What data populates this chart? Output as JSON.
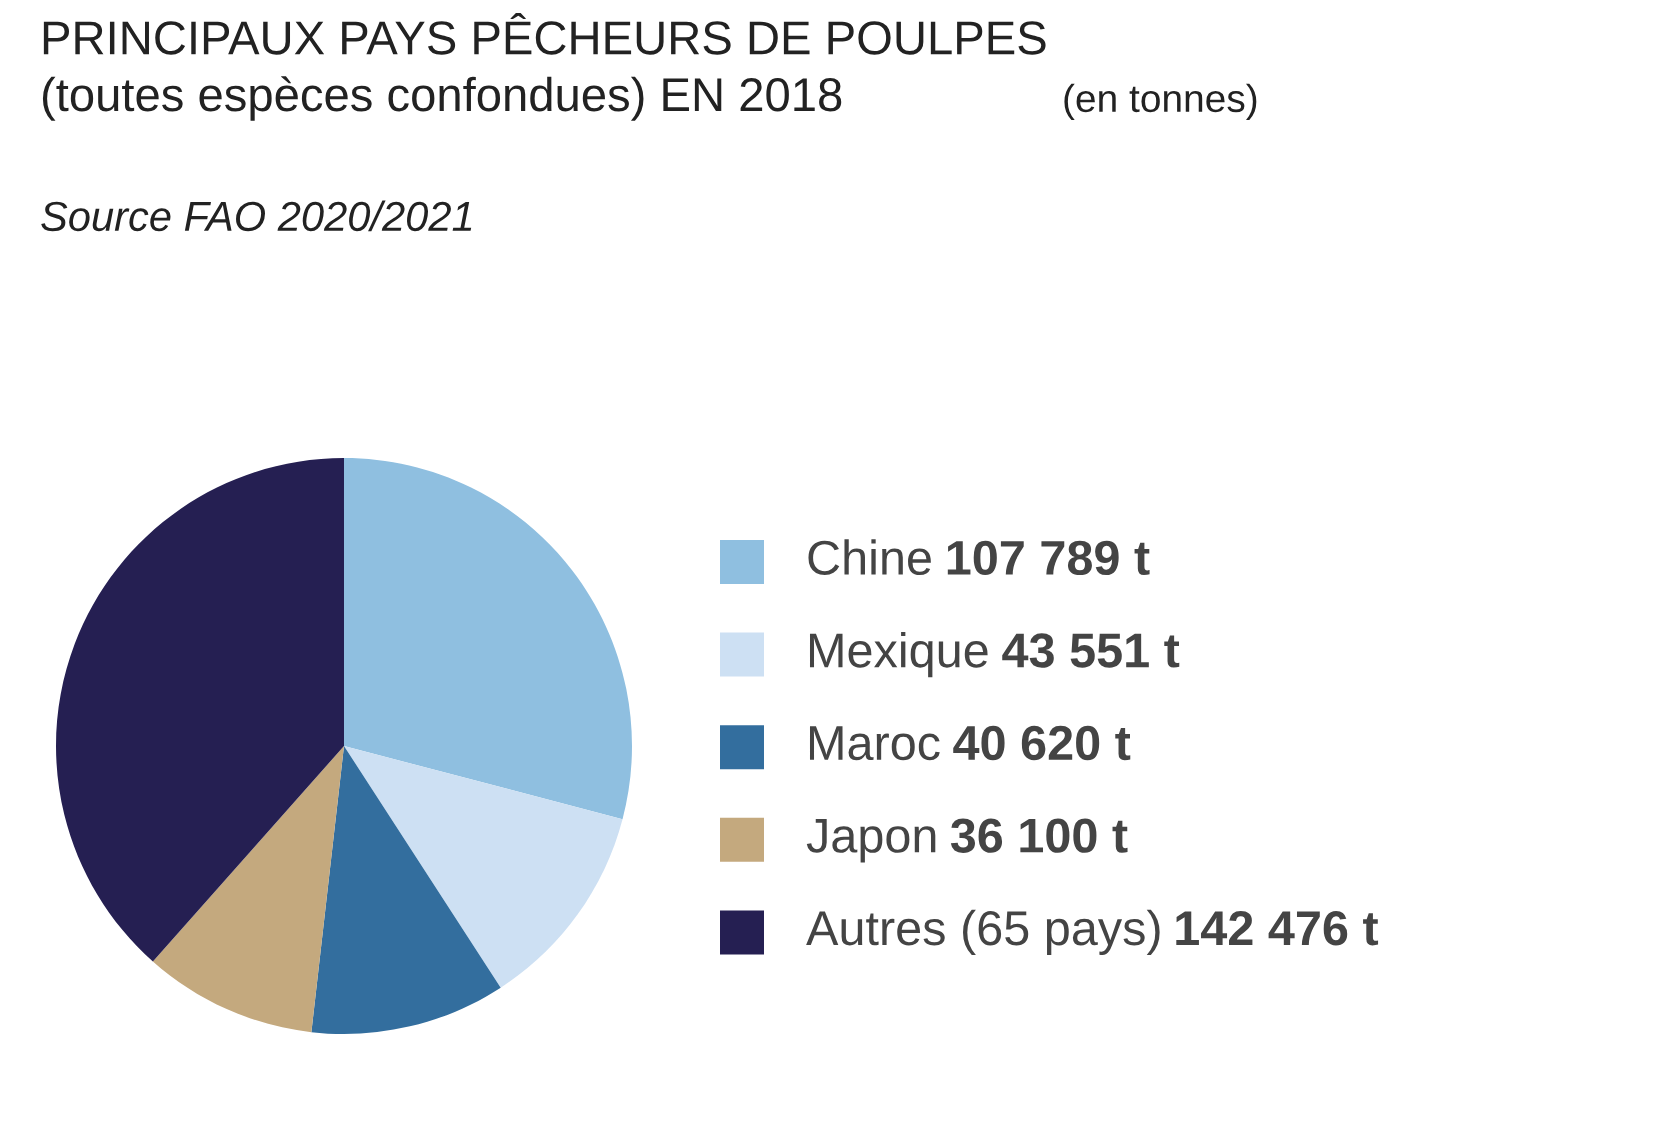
{
  "chart_data": {
    "type": "pie",
    "title": "PRINCIPAUX PAYS PÊCHEURS DE POULPES\n(toutes espèces confondues) EN 2018",
    "subtitle": "(en tonnes)",
    "annotations": [
      "Source FAO 2020/2021"
    ],
    "categories": [
      "Chine",
      "Mexique",
      "Maroc",
      "Japon",
      "Autres (65 pays)"
    ],
    "values": [
      107789,
      43551,
      40620,
      36100,
      142476
    ],
    "value_labels": [
      "107 789 t",
      "43 551 t",
      "40 620 t",
      "36 100 t",
      "142 476 t"
    ],
    "colors": [
      "#8fbfe0",
      "#cde0f3",
      "#336e9e",
      "#c4a97e",
      "#251f52"
    ],
    "legend": "right"
  }
}
